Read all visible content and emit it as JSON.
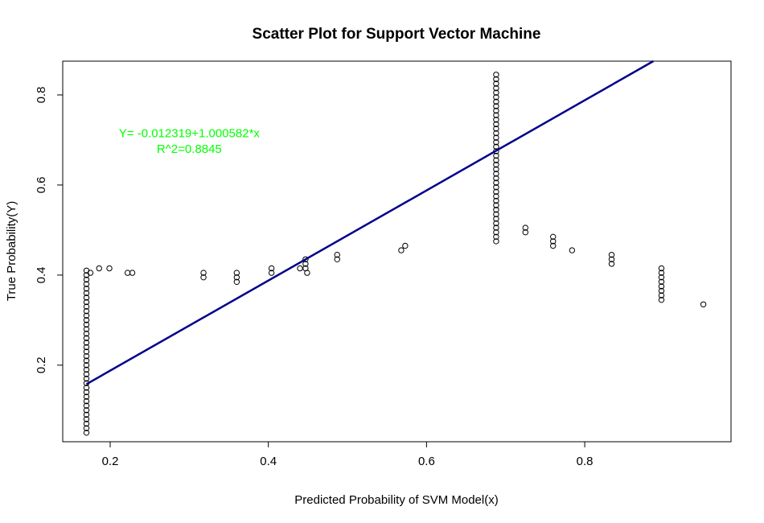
{
  "chart_data": {
    "type": "scatter",
    "title": "Scatter Plot for Support Vector Machine",
    "xlabel": "Predicted Probability of SVM Model(x)",
    "ylabel": "True Probability(Y)",
    "xlim": [
      0.14,
      0.985
    ],
    "ylim": [
      0.03,
      0.875
    ],
    "xticks": [
      0.2,
      0.4,
      0.6,
      0.8
    ],
    "xtick_labels": [
      "0.2",
      "0.4",
      "0.6",
      "0.8"
    ],
    "yticks": [
      0.2,
      0.4,
      0.6,
      0.8
    ],
    "ytick_labels": [
      "0.2",
      "0.4",
      "0.6",
      "0.8"
    ],
    "grid": false,
    "annotations": [
      {
        "text": "Y= -0.012319+1.000582*x",
        "x": 0.3,
        "y": 0.715,
        "color": "#00ff00"
      },
      {
        "text": "R^2=0.8845",
        "x": 0.3,
        "y": 0.68,
        "color": "#00ff00"
      }
    ],
    "regression_line": {
      "intercept": -0.012319,
      "slope": 1.000582,
      "x_from": 0.17,
      "color": "#00008b"
    },
    "point_color": "#000000",
    "columns": [
      {
        "x": 0.17,
        "y_from": 0.05,
        "y_to": 0.405,
        "step": 0.01
      },
      {
        "x": 0.688,
        "y_from": 0.475,
        "y_to": 0.84,
        "step": 0.01
      },
      {
        "x": 0.897,
        "y_from": 0.345,
        "y_to": 0.415,
        "step": 0.01
      }
    ],
    "points": [
      [
        0.175,
        0.405
      ],
      [
        0.186,
        0.415
      ],
      [
        0.199,
        0.415
      ],
      [
        0.222,
        0.405
      ],
      [
        0.228,
        0.405
      ],
      [
        0.318,
        0.405
      ],
      [
        0.318,
        0.395
      ],
      [
        0.36,
        0.405
      ],
      [
        0.36,
        0.395
      ],
      [
        0.36,
        0.385
      ],
      [
        0.404,
        0.415
      ],
      [
        0.404,
        0.405
      ],
      [
        0.44,
        0.415
      ],
      [
        0.447,
        0.435
      ],
      [
        0.447,
        0.425
      ],
      [
        0.447,
        0.415
      ],
      [
        0.449,
        0.405
      ],
      [
        0.487,
        0.445
      ],
      [
        0.487,
        0.435
      ],
      [
        0.568,
        0.455
      ],
      [
        0.573,
        0.465
      ],
      [
        0.725,
        0.505
      ],
      [
        0.725,
        0.495
      ],
      [
        0.76,
        0.485
      ],
      [
        0.76,
        0.475
      ],
      [
        0.76,
        0.465
      ],
      [
        0.784,
        0.455
      ],
      [
        0.834,
        0.445
      ],
      [
        0.834,
        0.435
      ],
      [
        0.834,
        0.425
      ],
      [
        0.95,
        0.335
      ]
    ]
  }
}
